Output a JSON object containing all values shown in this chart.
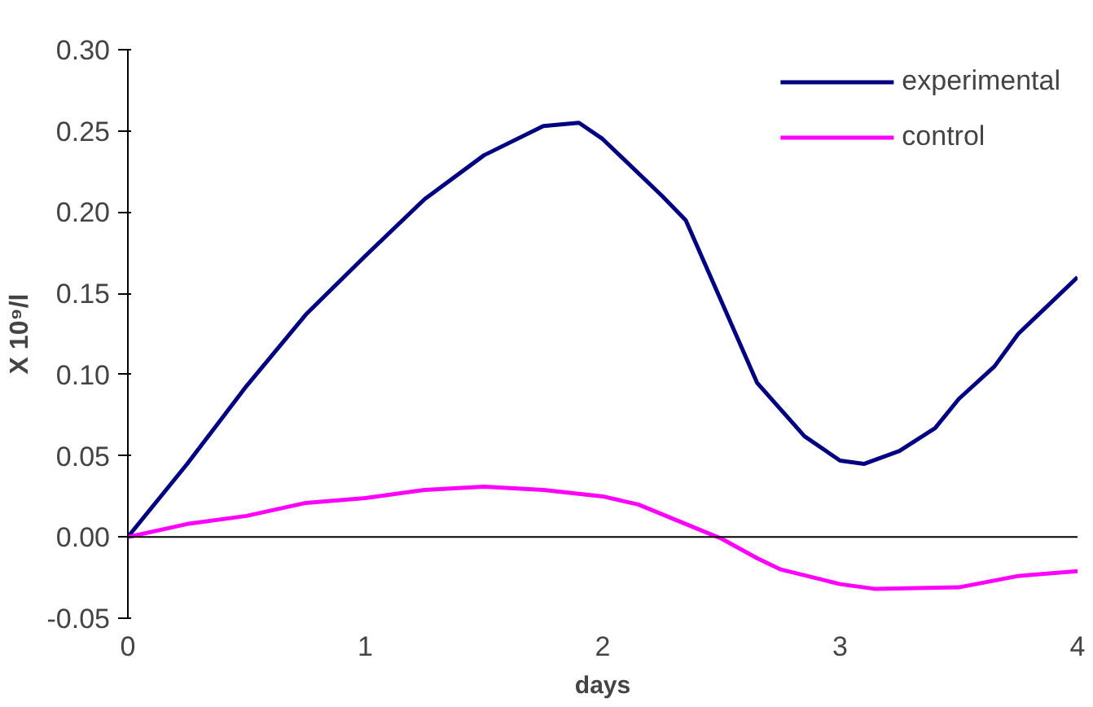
{
  "chart_data": {
    "type": "line",
    "xlabel": "days",
    "ylabel": "X 10⁹/l",
    "xlim": [
      0,
      4
    ],
    "ylim": [
      -0.05,
      0.3
    ],
    "xticks": [
      0,
      1,
      2,
      3,
      4
    ],
    "yticks": [
      {
        "value": -0.05,
        "label": "-0.05"
      },
      {
        "value": 0,
        "label": "0.00"
      },
      {
        "value": 0.05,
        "label": "0.05"
      },
      {
        "value": 0.1,
        "label": "0.10"
      },
      {
        "value": 0.15,
        "label": "0.15"
      },
      {
        "value": 0.2,
        "label": "0.20"
      },
      {
        "value": 0.25,
        "label": "0.25"
      },
      {
        "value": 0.3,
        "label": "0.30"
      }
    ],
    "grid": false,
    "ref_lines": [
      {
        "axis": "y",
        "value": 0,
        "color": "#000000"
      }
    ],
    "legend": "top right",
    "marker": "none",
    "line_style": "solid",
    "series": [
      {
        "name": "experimental",
        "color": "#000080",
        "x": [
          0,
          0.25,
          0.5,
          0.75,
          1,
          1.25,
          1.5,
          1.75,
          1.9,
          2,
          2.25,
          2.35,
          2.5,
          2.65,
          2.85,
          3,
          3.1,
          3.25,
          3.4,
          3.5,
          3.65,
          3.75,
          4
        ],
        "values": [
          0,
          0.045,
          0.093,
          0.137,
          0.173,
          0.208,
          0.235,
          0.253,
          0.255,
          0.245,
          0.21,
          0.195,
          0.145,
          0.095,
          0.062,
          0.047,
          0.045,
          0.053,
          0.067,
          0.085,
          0.105,
          0.125,
          0.16
        ]
      },
      {
        "name": "control",
        "color": "#ff00ff",
        "x": [
          0,
          0.25,
          0.5,
          0.75,
          1,
          1.25,
          1.5,
          1.75,
          2,
          2.15,
          2.35,
          2.5,
          2.65,
          2.75,
          3,
          3.15,
          3.5,
          3.75,
          4
        ],
        "values": [
          0,
          0.008,
          0.013,
          0.021,
          0.024,
          0.029,
          0.031,
          0.029,
          0.025,
          0.02,
          0.008,
          -0.001,
          -0.013,
          -0.02,
          -0.029,
          -0.032,
          -0.031,
          -0.024,
          -0.021
        ]
      }
    ]
  }
}
